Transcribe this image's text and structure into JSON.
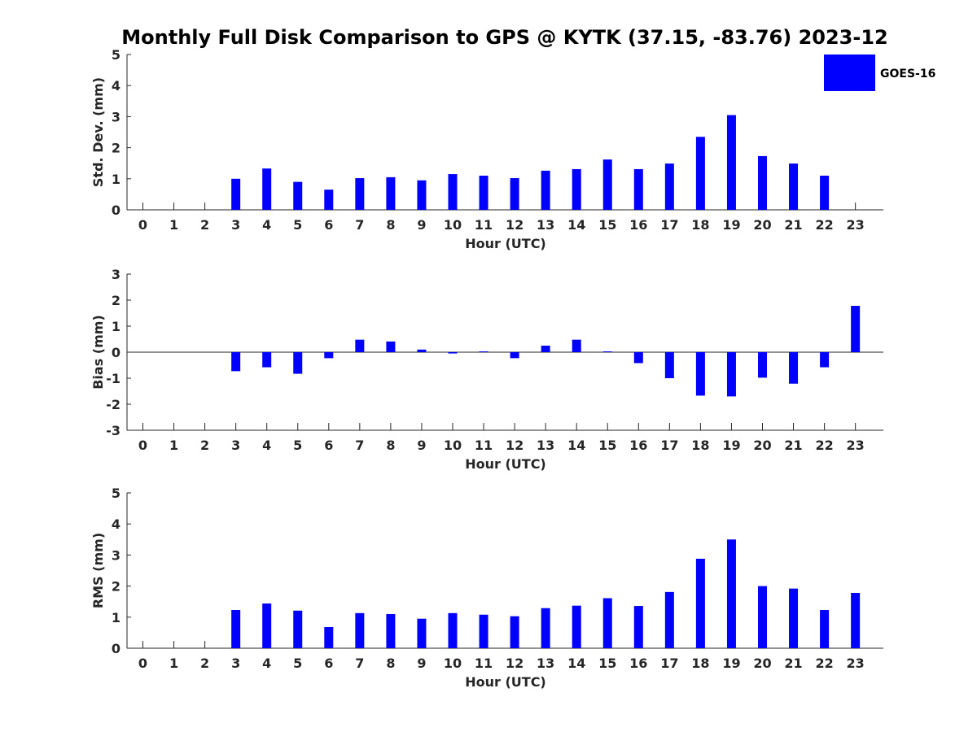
{
  "chart_data": {
    "title": "Monthly Full Disk Comparison to GPS @ KYTK (37.15, -83.76) 2023-12",
    "type": "bar",
    "legend": {
      "label": "GOES-16",
      "color": "#0000ff",
      "placement": "top-right"
    },
    "bar_color": "#0000ff",
    "panels": [
      {
        "id": "stddev",
        "type": "bar",
        "xlabel": "Hour (UTC)",
        "ylabel": "Std. Dev. (mm)",
        "ylim": [
          0,
          5
        ],
        "yticks": [
          0,
          1,
          2,
          3,
          4,
          5
        ],
        "categories": [
          "0",
          "1",
          "2",
          "3",
          "4",
          "5",
          "6",
          "7",
          "8",
          "9",
          "10",
          "11",
          "12",
          "13",
          "14",
          "15",
          "16",
          "17",
          "18",
          "19",
          "20",
          "21",
          "22",
          "23"
        ],
        "values": [
          null,
          null,
          null,
          1.0,
          1.33,
          0.9,
          0.65,
          1.02,
          1.05,
          0.95,
          1.15,
          1.1,
          1.02,
          1.26,
          1.31,
          1.62,
          1.31,
          1.49,
          2.35,
          3.05,
          1.73,
          1.49,
          1.1,
          null
        ]
      },
      {
        "id": "bias",
        "type": "bar",
        "xlabel": "Hour (UTC)",
        "ylabel": "Bias (mm)",
        "ylim": [
          -3,
          3
        ],
        "yticks": [
          -3,
          -2,
          -1,
          0,
          1,
          2,
          3
        ],
        "categories": [
          "0",
          "1",
          "2",
          "3",
          "4",
          "5",
          "6",
          "7",
          "8",
          "9",
          "10",
          "11",
          "12",
          "13",
          "14",
          "15",
          "16",
          "17",
          "18",
          "19",
          "20",
          "21",
          "22",
          "23"
        ],
        "values": [
          null,
          null,
          null,
          -0.73,
          -0.58,
          -0.83,
          -0.23,
          0.48,
          0.41,
          0.1,
          -0.05,
          0.03,
          -0.23,
          0.25,
          0.48,
          0.03,
          -0.42,
          -1.0,
          -1.67,
          -1.7,
          -0.98,
          -1.21,
          -0.58,
          1.78
        ]
      },
      {
        "id": "rms",
        "type": "bar",
        "xlabel": "Hour (UTC)",
        "ylabel": "RMS (mm)",
        "ylim": [
          0,
          5
        ],
        "yticks": [
          0,
          1,
          2,
          3,
          4,
          5
        ],
        "categories": [
          "0",
          "1",
          "2",
          "3",
          "4",
          "5",
          "6",
          "7",
          "8",
          "9",
          "10",
          "11",
          "12",
          "13",
          "14",
          "15",
          "16",
          "17",
          "18",
          "19",
          "20",
          "21",
          "22",
          "23"
        ],
        "values": [
          null,
          null,
          null,
          1.23,
          1.44,
          1.21,
          0.68,
          1.13,
          1.1,
          0.95,
          1.13,
          1.08,
          1.03,
          1.29,
          1.37,
          1.61,
          1.36,
          1.81,
          2.88,
          3.5,
          2.0,
          1.92,
          1.23,
          1.78
        ]
      }
    ]
  }
}
